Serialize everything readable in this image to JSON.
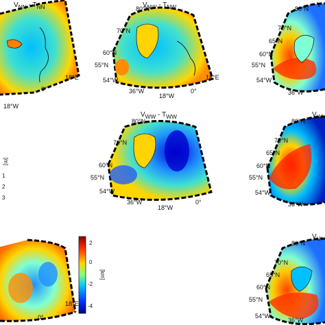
{
  "panels": {
    "nn": {
      "title": "V",
      "sub": "NN",
      "sep": " - T",
      "sub2": "NN"
    },
    "nw": {
      "title": "V",
      "sub": "NW",
      "sep": " - T",
      "sub2": "NW"
    },
    "ww": {
      "title": "V",
      "sub": "WW",
      "sep": " - T",
      "sub2": "WW"
    },
    "top_right": {
      "title": "V"
    },
    "mid_right": {
      "title": "V",
      "sub": "WI"
    },
    "bot_right": {
      "title": "V",
      "sub": "UI"
    }
  },
  "axis_labels": {
    "lat80": "80°N",
    "lat70": "70°N",
    "lat65": "65°N",
    "lat60": "60°N",
    "lat55": "55°N",
    "lon54": "54°W",
    "lon36": "36°W",
    "lon18": "18°W",
    "lon0": "0°",
    "lon18e": "18°E"
  },
  "colorbar": {
    "unit": "[km]",
    "ticks": [
      "2",
      "0",
      "-2",
      "-4"
    ],
    "colors": [
      "#8b0000",
      "#ff2a00",
      "#ffd400",
      "#7fff7f",
      "#00c0ff",
      "#0030ff",
      "#00008b"
    ]
  },
  "left_partial_colorbar": {
    "unit": "[m]",
    "ticks": [
      "1",
      "2",
      "3"
    ]
  }
}
